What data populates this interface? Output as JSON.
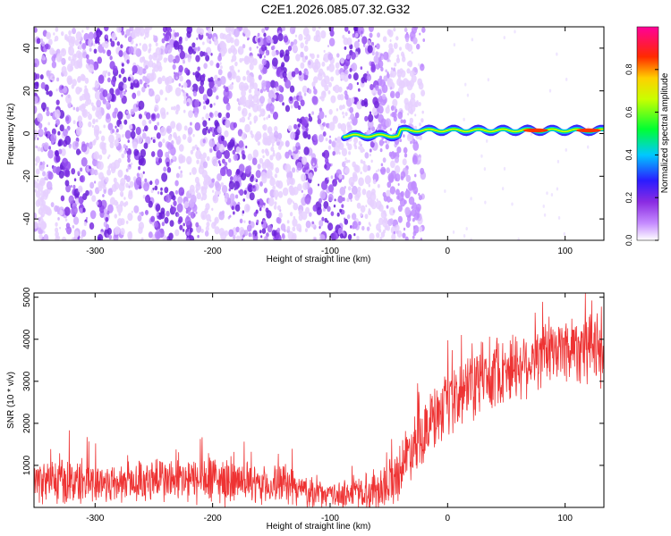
{
  "title": "C2E1.2026.085.07.32.G32",
  "colors": {
    "snr_line": "#ee3333",
    "spectrum_low": "#8a2be2",
    "axis": "#000000"
  },
  "chart_data": [
    {
      "type": "heatmap",
      "title": "C2E1.2026.085.07.32.G32",
      "xlabel": "Height of straight line (km)",
      "ylabel": "Frequency (Hz)",
      "xlim": [
        -352,
        133
      ],
      "ylim": [
        -50,
        50
      ],
      "xticks": [
        -300,
        -200,
        -100,
        0,
        100
      ],
      "yticks": [
        -40,
        -20,
        0,
        20,
        40
      ],
      "colorbar": {
        "label": "Normalized spectral amplitude",
        "range": [
          0,
          1
        ],
        "ticks": [
          "0.0",
          "0.2",
          "0.4",
          "0.6",
          "0.8"
        ],
        "colormap": "rainbow (purple→blue→cyan→green→yellow→red→magenta)"
      },
      "features": {
        "noise_region_x": [
          -352,
          -30
        ],
        "signal_line_x": [
          -88,
          133
        ],
        "signal_frequency_hz": 1.5,
        "signal_peaks_x": [
          75,
          120
        ]
      }
    },
    {
      "type": "line",
      "xlabel": "Height of straight line (km)",
      "ylabel": "SNR (10 * v/v)",
      "xlim": [
        -352,
        133
      ],
      "ylim": [
        0,
        5100
      ],
      "xticks": [
        -300,
        -200,
        -100,
        0,
        100
      ],
      "yticks": [
        1000,
        2000,
        3000,
        4000,
        5000
      ],
      "series": [
        {
          "name": "SNR",
          "x": [
            -352,
            -330,
            -310,
            -290,
            -270,
            -250,
            -230,
            -200,
            -180,
            -160,
            -140,
            -120,
            -100,
            -80,
            -60,
            -45,
            -30,
            -15,
            0,
            20,
            40,
            60,
            80,
            100,
            120,
            133
          ],
          "mean": [
            620,
            600,
            620,
            580,
            560,
            700,
            620,
            640,
            600,
            500,
            560,
            380,
            280,
            340,
            420,
            700,
            1500,
            2000,
            2350,
            2900,
            3200,
            3400,
            3600,
            3800,
            3900,
            3700
          ],
          "spread": [
            450,
            550,
            520,
            480,
            420,
            550,
            500,
            600,
            450,
            420,
            450,
            350,
            250,
            400,
            500,
            600,
            700,
            750,
            750,
            800,
            800,
            800,
            750,
            800,
            900,
            900
          ]
        }
      ]
    }
  ]
}
